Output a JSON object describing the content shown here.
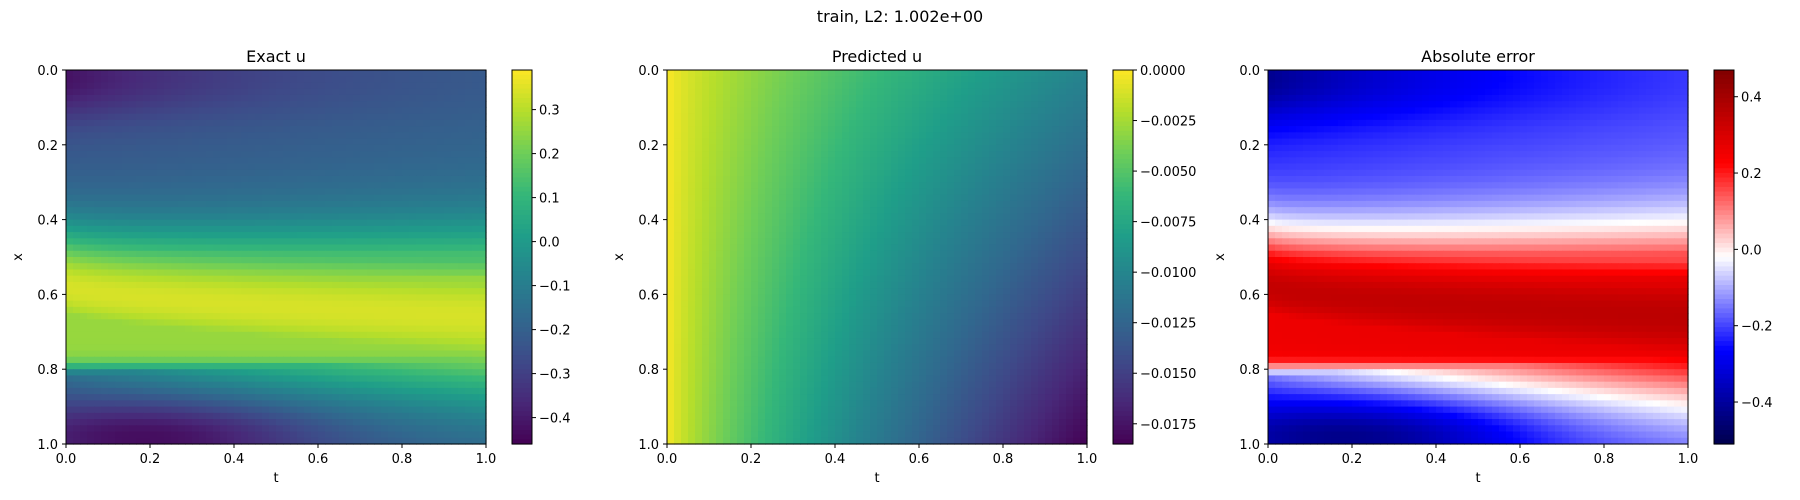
{
  "suptitle": "train, L2: 1.002e+00",
  "chart_data": [
    {
      "type": "heatmap",
      "title": "Exact u",
      "xlabel": "t",
      "ylabel": "x",
      "xlim": [
        0.0,
        1.0
      ],
      "ylim": [
        1.0,
        0.0
      ],
      "colormap": "viridis",
      "x_ticks": [
        "0.0",
        "0.2",
        "0.4",
        "0.6",
        "0.8",
        "1.0"
      ],
      "y_ticks": [
        "0.0",
        "0.2",
        "0.4",
        "0.6",
        "0.8",
        "1.0"
      ],
      "colorbar": {
        "range": [
          -0.46,
          0.39
        ],
        "ticks": [
          {
            "v": 0.3,
            "label": "0.3"
          },
          {
            "v": 0.2,
            "label": "0.2"
          },
          {
            "v": 0.1,
            "label": "0.1"
          },
          {
            "v": 0.0,
            "label": "0.0"
          },
          {
            "v": -0.1,
            "label": "−0.1"
          },
          {
            "v": -0.2,
            "label": "−0.2"
          },
          {
            "v": -0.3,
            "label": "−0.3"
          },
          {
            "v": -0.4,
            "label": "−0.4"
          }
        ]
      },
      "field": "exact"
    },
    {
      "type": "heatmap",
      "title": "Predicted u",
      "xlabel": "t",
      "ylabel": "x",
      "xlim": [
        0.0,
        1.0
      ],
      "ylim": [
        1.0,
        0.0
      ],
      "colormap": "viridis",
      "x_ticks": [
        "0.0",
        "0.2",
        "0.4",
        "0.6",
        "0.8",
        "1.0"
      ],
      "y_ticks": [
        "0.0",
        "0.2",
        "0.4",
        "0.6",
        "0.8",
        "1.0"
      ],
      "colorbar": {
        "range": [
          -0.0185,
          0.0
        ],
        "ticks": [
          {
            "v": 0.0,
            "label": "0.0000"
          },
          {
            "v": -0.0025,
            "label": "−0.0025"
          },
          {
            "v": -0.005,
            "label": "−0.0050"
          },
          {
            "v": -0.0075,
            "label": "−0.0075"
          },
          {
            "v": -0.01,
            "label": "−0.0100"
          },
          {
            "v": -0.0125,
            "label": "−0.0125"
          },
          {
            "v": -0.015,
            "label": "−0.0150"
          },
          {
            "v": -0.0175,
            "label": "−0.0175"
          }
        ]
      },
      "field": "predicted"
    },
    {
      "type": "heatmap",
      "title": "Absolute error",
      "xlabel": "t",
      "ylabel": "x",
      "xlim": [
        0.0,
        1.0
      ],
      "ylim": [
        1.0,
        0.0
      ],
      "colormap": "seismic",
      "x_ticks": [
        "0.0",
        "0.2",
        "0.4",
        "0.6",
        "0.8",
        "1.0"
      ],
      "y_ticks": [
        "0.0",
        "0.2",
        "0.4",
        "0.6",
        "0.8",
        "1.0"
      ],
      "colorbar": {
        "range": [
          -0.51,
          0.47
        ],
        "ticks": [
          {
            "v": 0.4,
            "label": "0.4"
          },
          {
            "v": 0.2,
            "label": "0.2"
          },
          {
            "v": 0.0,
            "label": "0.0"
          },
          {
            "v": -0.2,
            "label": "−0.2"
          },
          {
            "v": -0.4,
            "label": "−0.4"
          }
        ]
      },
      "field": "error"
    }
  ]
}
